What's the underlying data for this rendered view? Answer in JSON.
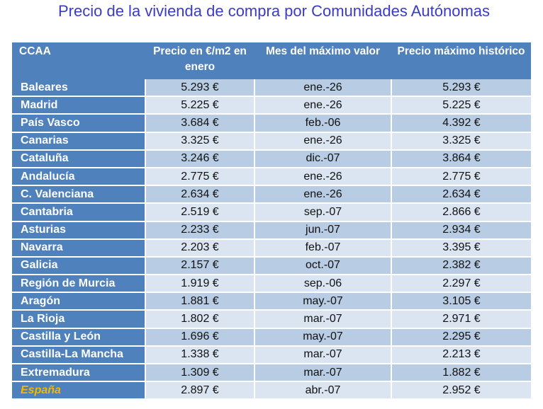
{
  "title": "Precio de la vivienda de compra por Comunidades Autónomas",
  "headers": [
    "CCAA",
    "Precio en €/m2 en enero",
    "Mes del máximo valor",
    "Precio máximo histórico"
  ],
  "rows": [
    [
      "Baleares",
      "5.293 €",
      "ene.-26",
      "5.293 €"
    ],
    [
      "Madrid",
      "5.225 €",
      "ene.-26",
      "5.225 €"
    ],
    [
      "País Vasco",
      "3.684 €",
      "feb.-06",
      "4.392 €"
    ],
    [
      "Canarias",
      "3.325 €",
      "ene.-26",
      "3.325 €"
    ],
    [
      "Cataluña",
      "3.246 €",
      "dic.-07",
      "3.864 €"
    ],
    [
      "Andalucía",
      "2.775 €",
      "ene.-26",
      "2.775 €"
    ],
    [
      "C. Valenciana",
      "2.634 €",
      "ene.-26",
      "2.634 €"
    ],
    [
      "Cantabria",
      "2.519 €",
      "sep.-07",
      "2.866 €"
    ],
    [
      "Asturias",
      "2.233 €",
      "jun.-07",
      "2.934 €"
    ],
    [
      "Navarra",
      "2.203 €",
      "feb.-07",
      "3.395 €"
    ],
    [
      "Galicia",
      "2.157 €",
      "oct.-07",
      "2.382 €"
    ],
    [
      "Región de Murcia",
      "1.919 €",
      "sep.-06",
      "2.297 €"
    ],
    [
      "Aragón",
      "1.881 €",
      "may.-07",
      "3.105 €"
    ],
    [
      "La Rioja",
      "1.802 €",
      "mar.-07",
      "2.971 €"
    ],
    [
      "Castilla y León",
      "1.696 €",
      "may.-07",
      "2.295 €"
    ],
    [
      "Castilla-La Mancha",
      "1.338 €",
      "mar.-07",
      "2.213 €"
    ],
    [
      "Extremadura",
      "1.309 €",
      "mar.-07",
      "1.882 €"
    ],
    [
      "España",
      "2.897 €",
      "abr.-07",
      "2.952 €"
    ]
  ]
}
